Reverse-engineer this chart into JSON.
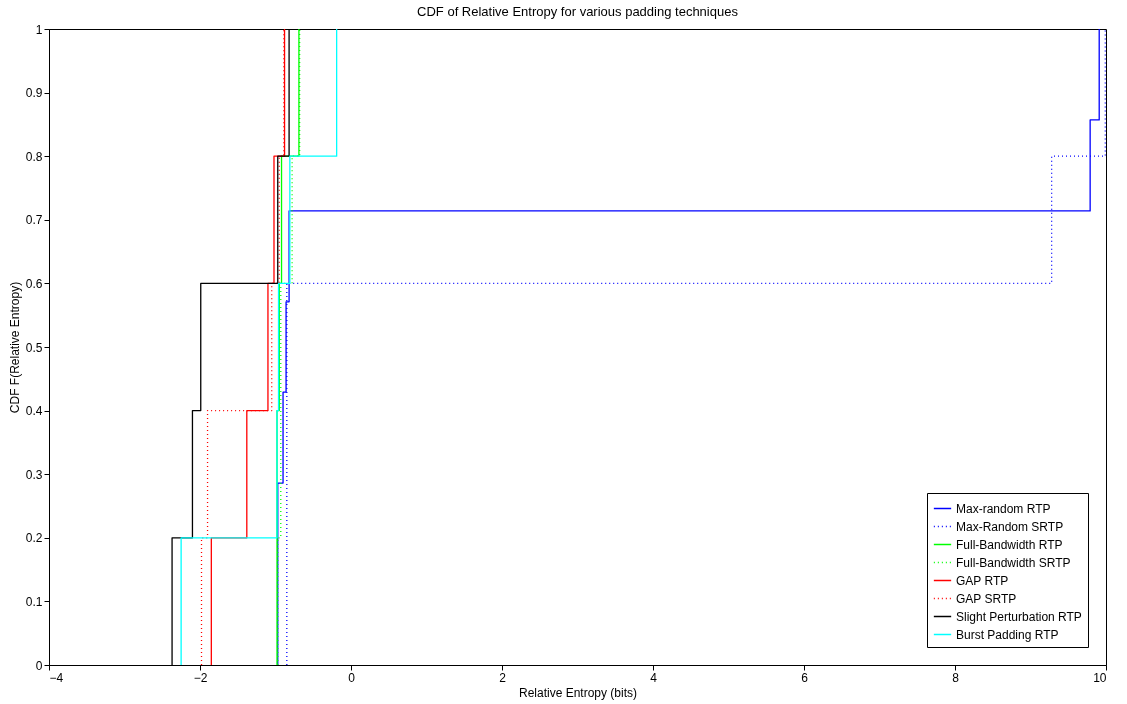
{
  "chart_data": {
    "type": "step",
    "title": "CDF of Relative Entropy for various padding techniques",
    "xlabel": "Relative Entropy (bits)",
    "ylabel": "CDF F(Relative Entropy)",
    "xlim": [
      -4,
      10
    ],
    "xticks": [
      -4,
      -2,
      0,
      2,
      4,
      6,
      8,
      10
    ],
    "ylim": [
      0,
      1
    ],
    "yticks": [
      0,
      0.1,
      0.2,
      0.3,
      0.4,
      0.5,
      0.6,
      0.7,
      0.8,
      0.9,
      1
    ],
    "grid": false,
    "legend": "bottom right",
    "series": [
      {
        "name": "Max-random RTP",
        "color": "#0000ff",
        "line_style": "solid",
        "x": [
          -0.97,
          -0.97,
          -0.9,
          -0.86,
          -0.82,
          9.79,
          9.91
        ],
        "values": [
          0,
          0.286,
          0.429,
          0.571,
          0.714,
          0.857,
          1
        ]
      },
      {
        "name": "Max-Random SRTP",
        "color": "#0000ff",
        "line_style": "dotted",
        "x": [
          -0.85,
          -0.85,
          -0.85,
          -0.85,
          9.28,
          9.99
        ],
        "values": [
          0,
          0.2,
          0.4,
          0.6,
          0.8,
          1
        ]
      },
      {
        "name": "Full-Bandwidth RTP",
        "color": "#00ff00",
        "line_style": "solid",
        "x": [
          -0.98,
          -0.98,
          -0.98,
          -0.95,
          -0.92,
          -0.69
        ],
        "values": [
          0,
          0.2,
          0.4,
          0.6,
          0.8,
          1
        ]
      },
      {
        "name": "Full-Bandwidth SRTP",
        "color": "#00ff00",
        "line_style": "dotted",
        "x": [
          -0.97,
          -0.97,
          -0.93,
          -0.93,
          -0.78,
          -0.68
        ],
        "values": [
          0,
          0.2,
          0.4,
          0.6,
          0.8,
          1
        ]
      },
      {
        "name": "GAP RTP",
        "color": "#ff0000",
        "line_style": "solid",
        "x": [
          -1.85,
          -1.85,
          -1.38,
          -1.1,
          -1.02,
          -0.88
        ],
        "values": [
          0,
          0.2,
          0.4,
          0.6,
          0.8,
          1
        ]
      },
      {
        "name": "GAP SRTP",
        "color": "#ff0000",
        "line_style": "dotted",
        "x": [
          -1.98,
          -1.98,
          -1.9,
          -1.05,
          -0.95,
          -0.89
        ],
        "values": [
          0,
          0.2,
          0.4,
          0.6,
          0.8,
          1
        ]
      },
      {
        "name": "Slight Perturbation RTP",
        "color": "#000000",
        "line_style": "solid",
        "x": [
          -2.37,
          -2.37,
          -2.1,
          -1.99,
          -0.97,
          -0.82
        ],
        "values": [
          0,
          0.2,
          0.4,
          0.6,
          0.8,
          1
        ]
      },
      {
        "name": "Burst Padding RTP",
        "color": "#00ffff",
        "line_style": "solid",
        "x": [
          -2.25,
          -2.25,
          -0.98,
          -0.96,
          -0.81,
          -0.19
        ],
        "values": [
          0,
          0.2,
          0.4,
          0.6,
          0.8,
          1
        ]
      }
    ]
  }
}
